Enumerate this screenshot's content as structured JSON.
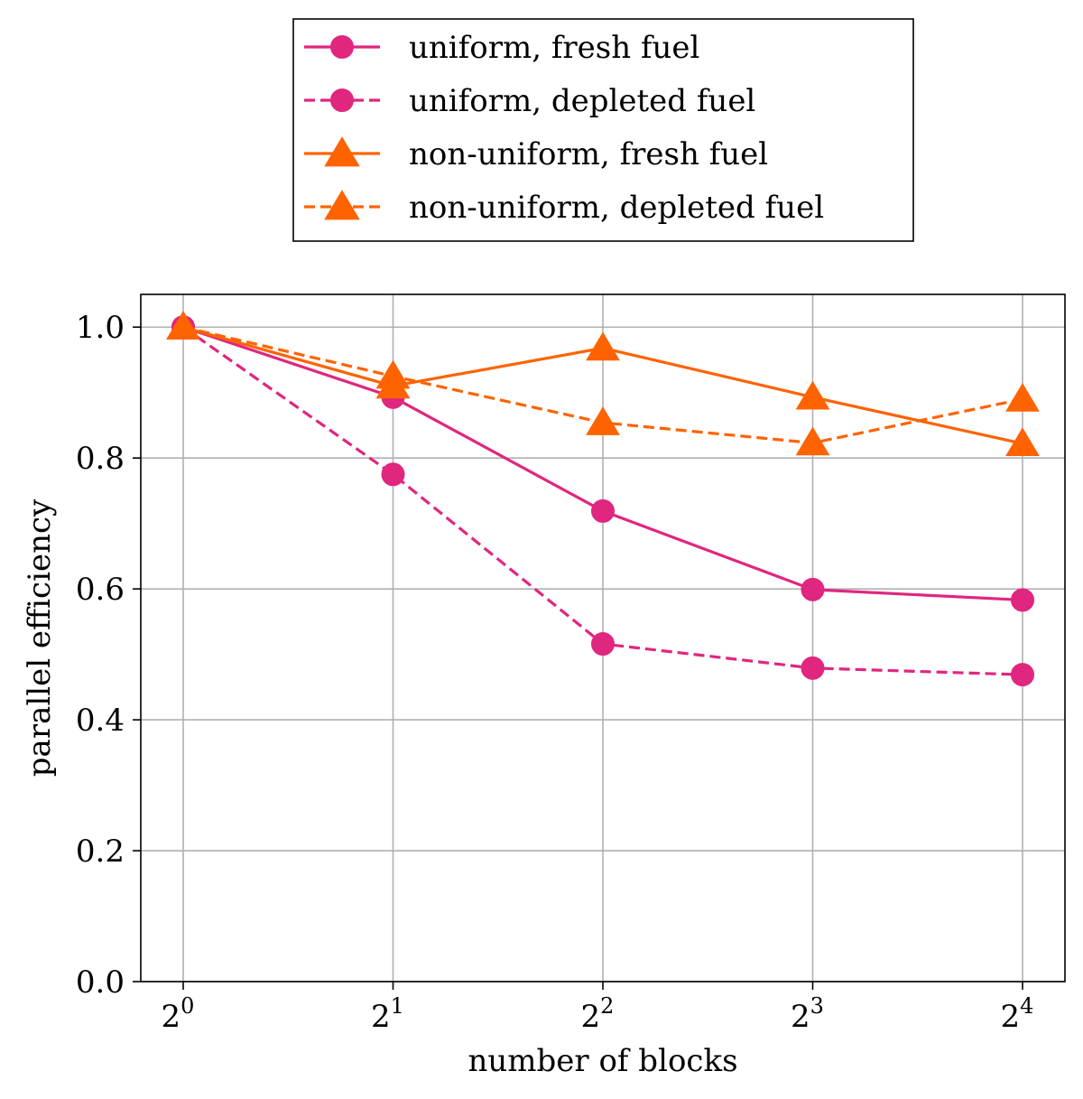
{
  "chart_data": {
    "type": "line",
    "xlabel": "number of blocks",
    "ylabel": "parallel efficiency",
    "x": [
      1,
      2,
      4,
      8,
      16
    ],
    "x_scale": "log2",
    "x_tick_labels": [
      {
        "base": "2",
        "exp": "0"
      },
      {
        "base": "2",
        "exp": "1"
      },
      {
        "base": "2",
        "exp": "2"
      },
      {
        "base": "2",
        "exp": "3"
      },
      {
        "base": "2",
        "exp": "4"
      }
    ],
    "ylim": [
      0,
      1.05
    ],
    "y_ticks": [
      0.0,
      0.2,
      0.4,
      0.6,
      0.8,
      1.0
    ],
    "y_tick_labels": [
      "0.0",
      "0.2",
      "0.4",
      "0.6",
      "0.8",
      "1.0"
    ],
    "grid": true,
    "legend_position": "top-center-outside",
    "series": [
      {
        "name": "uniform, fresh fuel",
        "values": [
          1.0,
          0.893,
          0.719,
          0.599,
          0.583
        ],
        "color": "#e0267f",
        "linestyle": "solid",
        "marker": "circle"
      },
      {
        "name": "uniform, depleted fuel",
        "values": [
          1.0,
          0.775,
          0.516,
          0.479,
          0.469
        ],
        "color": "#e0267f",
        "linestyle": "dashed",
        "marker": "circle"
      },
      {
        "name": "non-uniform, fresh fuel",
        "values": [
          1.0,
          0.91,
          0.968,
          0.893,
          0.822
        ],
        "color": "#ff6300",
        "linestyle": "solid",
        "marker": "triangle"
      },
      {
        "name": "non-uniform, depleted fuel",
        "values": [
          1.0,
          0.925,
          0.854,
          0.823,
          0.89
        ],
        "color": "#ff6300",
        "linestyle": "dashed",
        "marker": "triangle"
      }
    ]
  }
}
